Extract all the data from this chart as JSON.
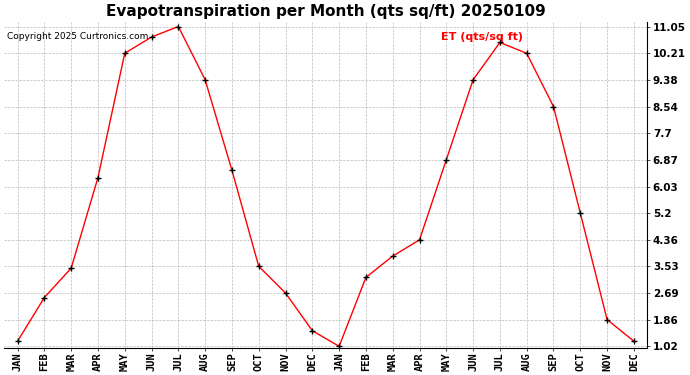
{
  "title": "Evapotranspiration per Month (qts sq/ft) 20250109",
  "copyright": "Copyright 2025 Curtronics.com",
  "legend_label": "ET (qts/sq ft)",
  "months": [
    "JAN",
    "FEB",
    "MAR",
    "APR",
    "MAY",
    "JUN",
    "JUL",
    "AUG",
    "SEP",
    "OCT",
    "NOV",
    "DEC",
    "JAN",
    "FEB",
    "MAR",
    "APR",
    "MAY",
    "JUN",
    "JUL",
    "AUG",
    "SEP",
    "OCT",
    "NOV",
    "DEC"
  ],
  "values": [
    1.18,
    2.55,
    3.47,
    6.31,
    10.21,
    10.72,
    11.05,
    9.38,
    6.54,
    3.53,
    2.69,
    1.51,
    1.02,
    3.18,
    3.85,
    4.36,
    6.87,
    9.38,
    10.55,
    10.21,
    8.54,
    5.2,
    1.86,
    1.18
  ],
  "yticks": [
    1.02,
    1.86,
    2.69,
    3.53,
    4.36,
    5.2,
    6.03,
    6.87,
    7.7,
    8.54,
    9.38,
    10.21,
    11.05
  ],
  "line_color": "red",
  "marker": "+",
  "marker_color": "black",
  "bg_color": "#ffffff",
  "grid_color": "#bbbbbb",
  "title_fontsize": 11,
  "tick_fontsize": 7.5,
  "copyright_fontsize": 6.5,
  "legend_fontsize": 8,
  "ylabel_color": "red"
}
